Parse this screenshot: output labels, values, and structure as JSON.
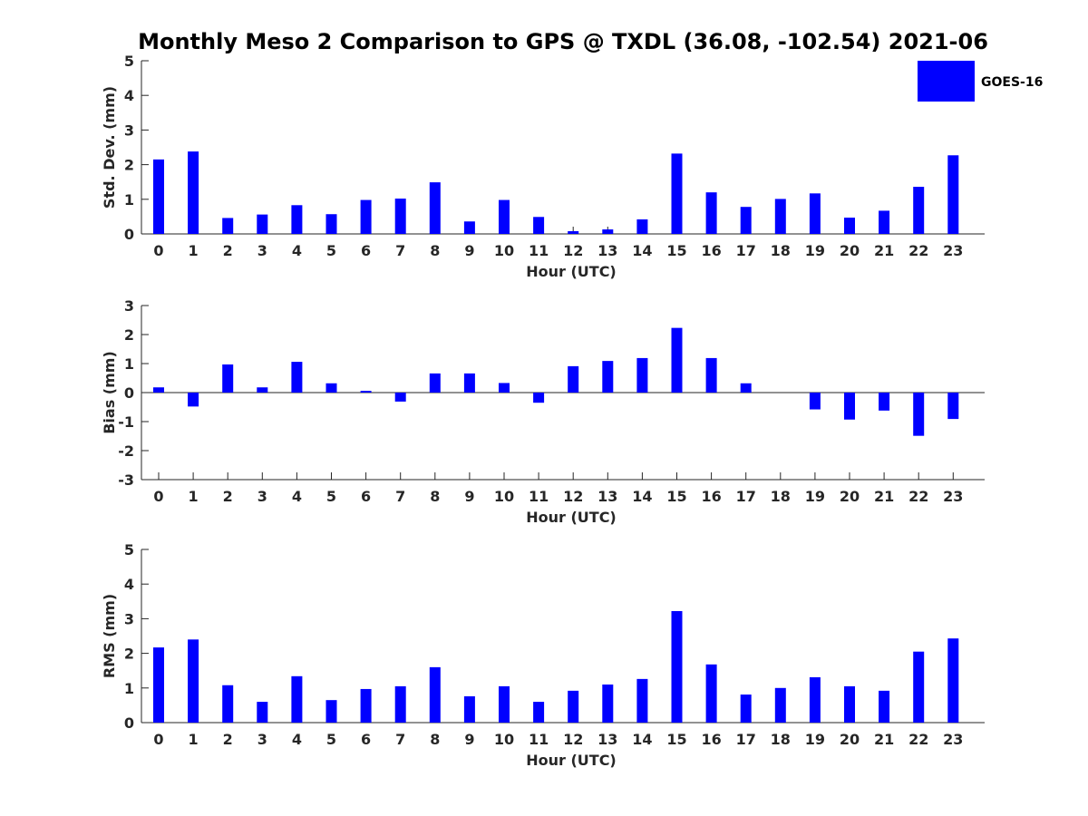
{
  "chart_data": [
    {
      "type": "bar",
      "title": "Monthly Meso 2 Comparison to GPS @ TXDL (36.08, -102.54) 2021-06",
      "xlabel": "Hour (UTC)",
      "ylabel": "Std. Dev. (mm)",
      "ylim": [
        0,
        5
      ],
      "yticks": [
        0,
        1,
        2,
        3,
        4,
        5
      ],
      "categories": [
        "0",
        "1",
        "2",
        "3",
        "4",
        "5",
        "6",
        "7",
        "8",
        "9",
        "10",
        "11",
        "12",
        "13",
        "14",
        "15",
        "16",
        "17",
        "18",
        "19",
        "20",
        "21",
        "22",
        "23"
      ],
      "series": [
        {
          "name": "GOES-16",
          "color": "#0000ff",
          "values": [
            2.15,
            2.38,
            0.46,
            0.56,
            0.83,
            0.57,
            0.98,
            1.02,
            1.49,
            0.36,
            0.98,
            0.49,
            0.08,
            0.13,
            0.42,
            2.32,
            1.2,
            0.78,
            1.01,
            1.17,
            0.47,
            0.67,
            1.36,
            2.27
          ]
        }
      ],
      "legend": "top-right",
      "grid": false
    },
    {
      "type": "bar",
      "xlabel": "Hour (UTC)",
      "ylabel": "Bias (mm)",
      "ylim": [
        -3,
        3
      ],
      "yticks": [
        -3,
        -2,
        -1,
        0,
        1,
        2,
        3
      ],
      "categories": [
        "0",
        "1",
        "2",
        "3",
        "4",
        "5",
        "6",
        "7",
        "8",
        "9",
        "10",
        "11",
        "12",
        "13",
        "14",
        "15",
        "16",
        "17",
        "18",
        "19",
        "20",
        "21",
        "22",
        "23"
      ],
      "series": [
        {
          "color": "#0000ff",
          "values": [
            0.18,
            -0.48,
            0.97,
            0.18,
            1.06,
            0.32,
            0.06,
            -0.31,
            0.66,
            0.66,
            0.33,
            -0.35,
            0.91,
            1.09,
            1.19,
            2.23,
            1.19,
            0.32,
            0.0,
            -0.58,
            -0.93,
            -0.62,
            -1.49,
            -0.91
          ]
        }
      ],
      "grid": false
    },
    {
      "type": "bar",
      "xlabel": "Hour (UTC)",
      "ylabel": "RMS (mm)",
      "ylim": [
        0,
        5
      ],
      "yticks": [
        0,
        1,
        2,
        3,
        4,
        5
      ],
      "categories": [
        "0",
        "1",
        "2",
        "3",
        "4",
        "5",
        "6",
        "7",
        "8",
        "9",
        "10",
        "11",
        "12",
        "13",
        "14",
        "15",
        "16",
        "17",
        "18",
        "19",
        "20",
        "21",
        "22",
        "23"
      ],
      "series": [
        {
          "color": "#0000ff",
          "values": [
            2.17,
            2.4,
            1.08,
            0.6,
            1.34,
            0.65,
            0.97,
            1.05,
            1.6,
            0.76,
            1.05,
            0.6,
            0.92,
            1.1,
            1.26,
            3.22,
            1.68,
            0.81,
            1.0,
            1.31,
            1.05,
            0.92,
            2.05,
            2.43
          ]
        }
      ],
      "grid": false
    }
  ]
}
